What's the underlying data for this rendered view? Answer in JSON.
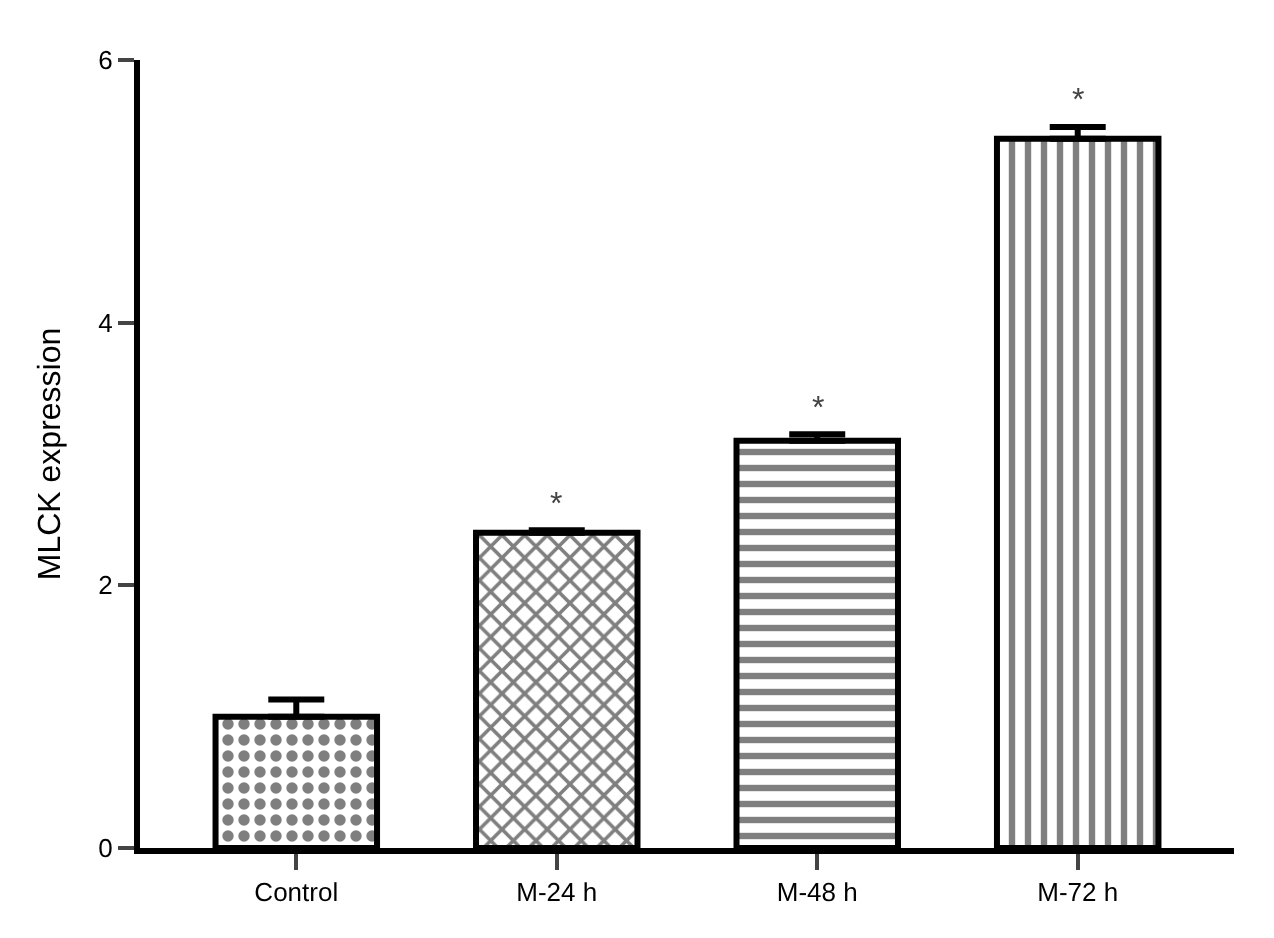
{
  "chart_data": {
    "type": "bar",
    "ylabel": "MLCK expression",
    "categories": [
      "Control",
      "M-24 h",
      "M-48 h",
      "M-72 h"
    ],
    "values": [
      1.0,
      2.4,
      3.1,
      5.4
    ],
    "errors": [
      0.13,
      0.02,
      0.05,
      0.09
    ],
    "colors": [
      "#000000",
      "#000000",
      "#000000",
      "#000000"
    ],
    "ylim": [
      0,
      6
    ],
    "yticks": [
      0,
      2,
      4,
      6
    ],
    "annotations": [
      "*",
      "*",
      "*"
    ]
  }
}
